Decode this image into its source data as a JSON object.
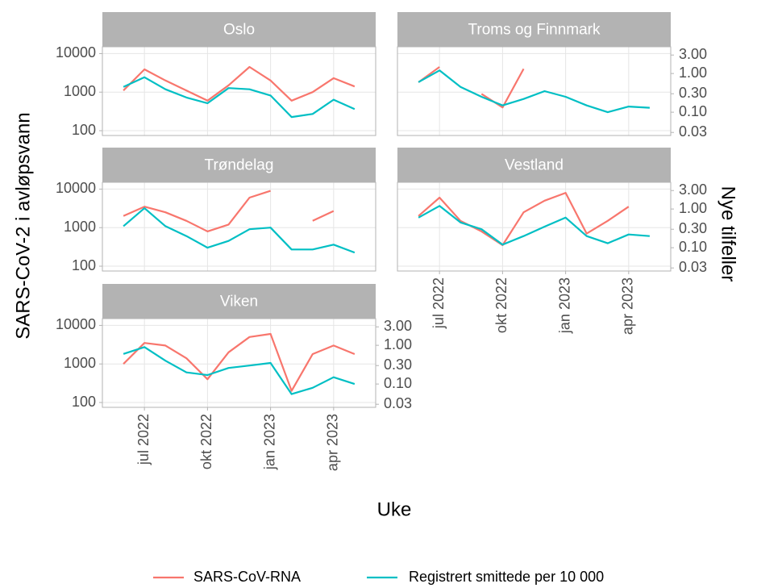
{
  "chart_data": {
    "type": "line",
    "log_scale": true,
    "grid": true,
    "x_label": "Uke",
    "y_label": "SARS-CoV-2 i avløpsvann",
    "y2_label": "Nye tilfeller",
    "x": [
      "2022-06",
      "2022-07",
      "2022-08",
      "2022-09",
      "2022-10",
      "2022-11",
      "2022-12",
      "2023-01",
      "2023-02",
      "2023-03",
      "2023-04",
      "2023-05"
    ],
    "xlim": [
      "2022-05",
      "2023-06"
    ],
    "xticks": [
      {
        "value": "2022-07",
        "label": "jul 2022"
      },
      {
        "value": "2022-10",
        "label": "okt 2022"
      },
      {
        "value": "2023-01",
        "label": "jan 2023"
      },
      {
        "value": "2023-04",
        "label": "apr 2023"
      }
    ],
    "ylim": [
      75,
      15000
    ],
    "yticks": [
      100,
      1000,
      10000
    ],
    "y2lim": [
      0.025,
      4.9
    ],
    "y2ticks": [
      0.03,
      {
        "value": 0.1,
        "label": "0.10"
      },
      {
        "value": 0.3,
        "label": "0.30"
      },
      {
        "value": 1,
        "label": "1.00"
      },
      {
        "value": 3,
        "label": "3.00"
      }
    ],
    "series": [
      {
        "name": "SARS-CoV-RNA",
        "color": "#F8766D"
      },
      {
        "name": "Registrert smittede per 10 000",
        "color": "#00BFC4",
        "axis": "y2"
      }
    ],
    "facets": [
      {
        "title": "Oslo",
        "series": [
          {
            "values": [
              1100,
              3900,
              2000,
              1100,
              600,
              1500,
              4500,
              2000,
              600,
              1000,
              2300,
              1400
            ]
          },
          {
            "values": [
              0.45,
              0.8,
              0.39,
              0.24,
              0.17,
              0.42,
              0.39,
              0.27,
              0.075,
              0.09,
              0.21,
              0.12
            ]
          }
        ]
      },
      {
        "title": "Troms og Finnmark",
        "series": [
          {
            "values": [
              1800,
              4500,
              null,
              900,
              400,
              4000,
              null,
              null,
              null,
              null,
              null,
              null
            ]
          },
          {
            "values": [
              0.6,
              1.2,
              0.45,
              0.25,
              0.15,
              0.22,
              0.35,
              0.25,
              0.15,
              0.1,
              0.14,
              0.13
            ]
          }
        ]
      },
      {
        "title": "Trøndelag",
        "series": [
          {
            "values": [
              2000,
              3500,
              2500,
              1500,
              800,
              1200,
              6000,
              9000,
              null,
              1500,
              2700,
              null
            ]
          },
          {
            "values": [
              0.36,
              1.05,
              0.36,
              0.2,
              0.1,
              0.15,
              0.3,
              0.33,
              0.09,
              0.09,
              0.12,
              0.075
            ]
          }
        ]
      },
      {
        "title": "Vestland",
        "series": [
          {
            "values": [
              2000,
              6000,
              1500,
              800,
              350,
              2500,
              5000,
              8000,
              700,
              1500,
              3500,
              null
            ]
          },
          {
            "values": [
              0.6,
              1.2,
              0.45,
              0.3,
              0.12,
              0.2,
              0.35,
              0.6,
              0.2,
              0.13,
              0.22,
              0.2
            ]
          }
        ]
      },
      {
        "title": "Viken",
        "series": [
          {
            "values": [
              1000,
              3500,
              3000,
              1400,
              400,
              2000,
              5000,
              6000,
              200,
              1800,
              3000,
              1800
            ]
          },
          {
            "values": [
              0.6,
              0.9,
              0.4,
              0.2,
              0.17,
              0.26,
              0.3,
              0.35,
              0.055,
              0.08,
              0.15,
              0.1
            ]
          }
        ]
      }
    ]
  }
}
